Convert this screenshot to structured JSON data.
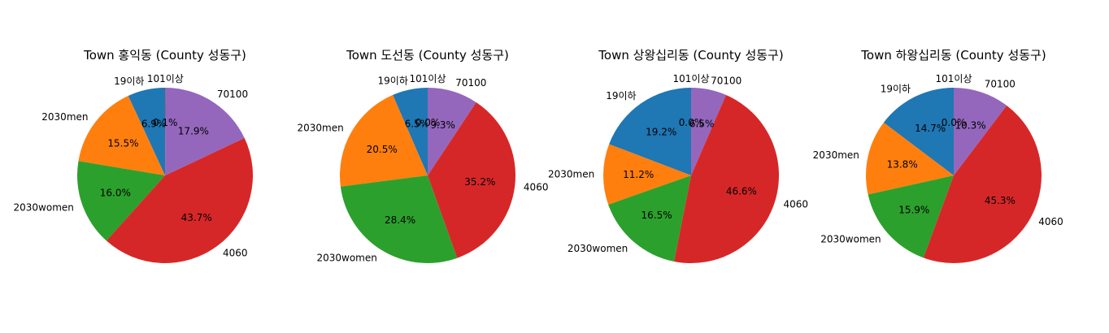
{
  "chart_data": [
    {
      "type": "pie",
      "title": "Town 홍익동 (County 성동구)",
      "labels": [
        "19이하",
        "2030men",
        "2030women",
        "4060",
        "70100",
        "101이상"
      ],
      "values": [
        6.9,
        15.5,
        16.0,
        43.7,
        17.9,
        0.1
      ],
      "pct_labels": [
        "6.9%",
        "15.5%",
        "16.0%",
        "43.7%",
        "17.9%",
        "0.1%"
      ]
    },
    {
      "type": "pie",
      "title": "Town 도선동 (County 성동구)",
      "labels": [
        "19이하",
        "2030men",
        "2030women",
        "4060",
        "70100",
        "101이상"
      ],
      "values": [
        6.5,
        20.5,
        28.4,
        35.2,
        9.3,
        0.0
      ],
      "pct_labels": [
        "6.5%",
        "20.5%",
        "28.4%",
        "35.2%",
        "9.3%",
        "0.0%"
      ]
    },
    {
      "type": "pie",
      "title": "Town 상왕십리동 (County 성동구)",
      "labels": [
        "19이하",
        "2030men",
        "2030women",
        "4060",
        "70100",
        "101이상"
      ],
      "values": [
        19.2,
        11.2,
        16.5,
        46.6,
        6.5,
        0.0
      ],
      "pct_labels": [
        "19.2%",
        "11.2%",
        "16.5%",
        "46.6%",
        "6.5%",
        "0.0%"
      ]
    },
    {
      "type": "pie",
      "title": "Town 하왕십리동 (County 성동구)",
      "labels": [
        "19이하",
        "2030men",
        "2030women",
        "4060",
        "70100",
        "101이상"
      ],
      "values": [
        14.7,
        13.8,
        15.9,
        45.3,
        10.3,
        0.0
      ],
      "pct_labels": [
        "14.7%",
        "13.8%",
        "15.9%",
        "45.3%",
        "10.3%",
        "0.0%"
      ]
    }
  ],
  "colors": [
    "#1f77b4",
    "#ff7f0e",
    "#2ca02c",
    "#d62728",
    "#9467bd",
    "#8c564b"
  ]
}
